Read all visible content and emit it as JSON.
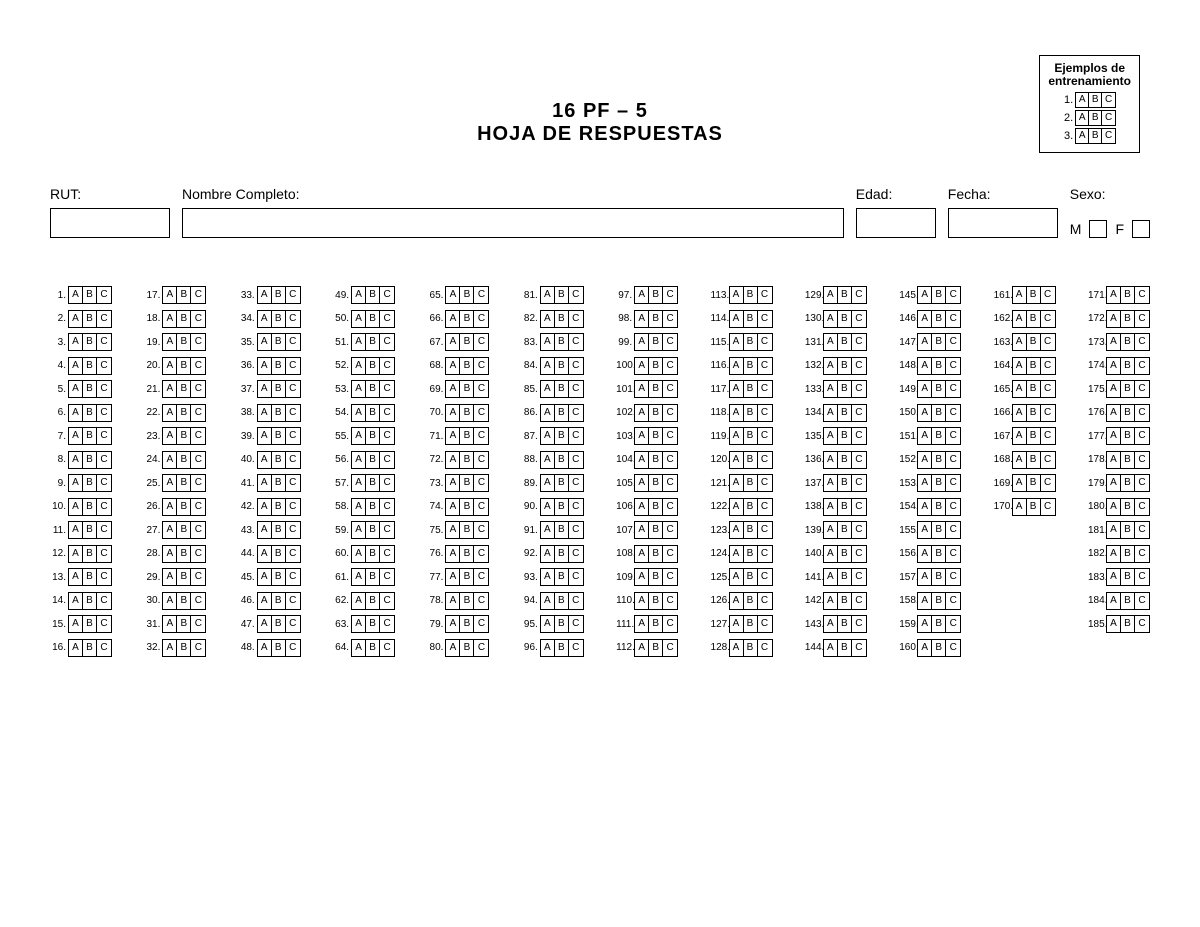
{
  "title": {
    "line1": "16  PF – 5",
    "line2": "HOJA DE RESPUESTAS"
  },
  "training": {
    "title_line1": "Ejemplos de",
    "title_line2": "entrenamiento",
    "rows": [
      {
        "num": "1.",
        "opts": [
          "A",
          "B",
          "C"
        ]
      },
      {
        "num": "2.",
        "opts": [
          "A",
          "B",
          "C"
        ]
      },
      {
        "num": "3.",
        "opts": [
          "A",
          "B",
          "C"
        ]
      }
    ]
  },
  "fields": {
    "rut_label": "RUT:",
    "nombre_label": "Nombre Completo:",
    "edad_label": "Edad:",
    "fecha_label": "Fecha:",
    "sexo_label": "Sexo:",
    "sexo_m": "M",
    "sexo_f": "F"
  },
  "options": [
    "A",
    "B",
    "C"
  ],
  "grid": {
    "columns": [
      {
        "start": 1,
        "end": 16
      },
      {
        "start": 17,
        "end": 32
      },
      {
        "start": 33,
        "end": 48
      },
      {
        "start": 49,
        "end": 64
      },
      {
        "start": 65,
        "end": 80
      },
      {
        "start": 81,
        "end": 96
      },
      {
        "start": 97,
        "end": 112
      },
      {
        "start": 113,
        "end": 128
      },
      {
        "start": 129,
        "end": 144
      },
      {
        "start": 145,
        "end": 160
      },
      {
        "start": 161,
        "end": 170
      },
      {
        "start": 171,
        "end": 185
      }
    ]
  },
  "colors": {
    "ink": "#000000",
    "paper": "#ffffff"
  }
}
